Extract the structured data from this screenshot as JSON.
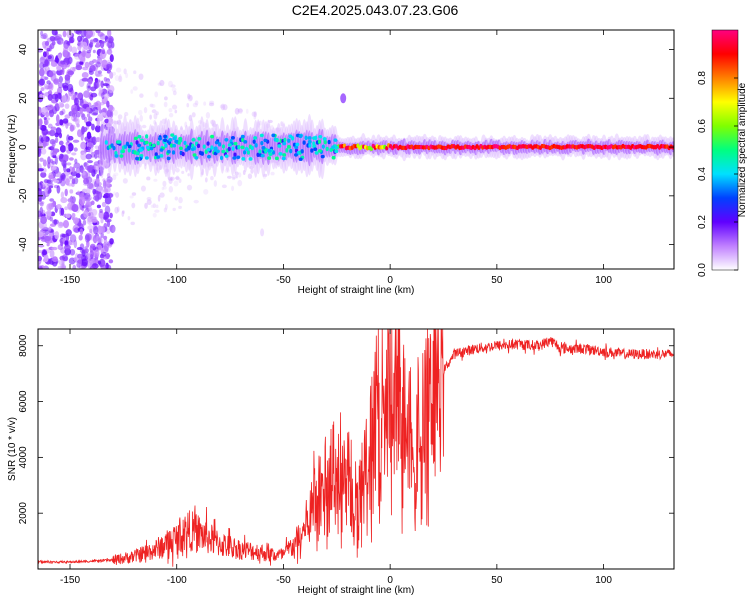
{
  "page": {
    "title": "C2E4.2025.043.07.23.G06"
  },
  "chart_data": [
    {
      "type": "heatmap",
      "title": "C2E4.2025.043.07.23.G06",
      "xlabel": "Height of straight line (km)",
      "ylabel": "Frequency (Hz)",
      "xlim": [
        -165,
        133
      ],
      "ylim": [
        -50,
        48
      ],
      "xticks": [
        -150,
        -100,
        -50,
        0,
        50,
        100
      ],
      "yticks": [
        -40,
        -20,
        0,
        20,
        40
      ],
      "grid": false,
      "description_of_values": "Spectral amplitude concentrated near 0 Hz; scattered noise below -130 km; strong narrow band (~0.9-1.0) from about -20 km to 133 km.",
      "colorbar": {
        "label": "Normalized spectral amplitude",
        "range": [
          0,
          1
        ],
        "ticks": [
          0.0,
          0.2,
          0.4,
          0.6,
          0.8
        ],
        "colors": [
          "#ffffff",
          "#c080ff",
          "#6000ff",
          "#0040ff",
          "#00e0ff",
          "#00ff80",
          "#80ff00",
          "#ffff00",
          "#ff8000",
          "#ff0000",
          "#ff0080"
        ]
      }
    },
    {
      "type": "line",
      "xlabel": "Height of straight line (km)",
      "ylabel": "SNR (10 * v/v)",
      "xlim": [
        -165,
        133
      ],
      "ylim": [
        0,
        8600
      ],
      "xticks": [
        -150,
        -100,
        -50,
        0,
        50,
        100
      ],
      "yticks": [
        2000,
        4000,
        6000,
        8000
      ],
      "grid": false,
      "series": [
        {
          "color": "#ee2222",
          "x": [
            -165,
            -150,
            -140,
            -130,
            -120,
            -110,
            -100,
            -95,
            -90,
            -80,
            -70,
            -60,
            -55,
            -50,
            -45,
            -40,
            -35,
            -30,
            -25,
            -20,
            -15,
            -10,
            -5,
            0,
            5,
            10,
            15,
            20,
            30,
            40,
            50,
            60,
            70,
            75,
            80,
            90,
            100,
            110,
            120,
            133
          ],
          "y": [
            250,
            250,
            280,
            320,
            450,
            700,
            1100,
            1400,
            1300,
            900,
            700,
            600,
            500,
            500,
            900,
            1500,
            2500,
            3200,
            4000,
            3500,
            2500,
            4000,
            6500,
            6300,
            6000,
            5500,
            5200,
            6500,
            7700,
            7900,
            8000,
            8050,
            8000,
            8200,
            7900,
            7900,
            7800,
            7700,
            7700,
            7700
          ]
        }
      ]
    }
  ]
}
